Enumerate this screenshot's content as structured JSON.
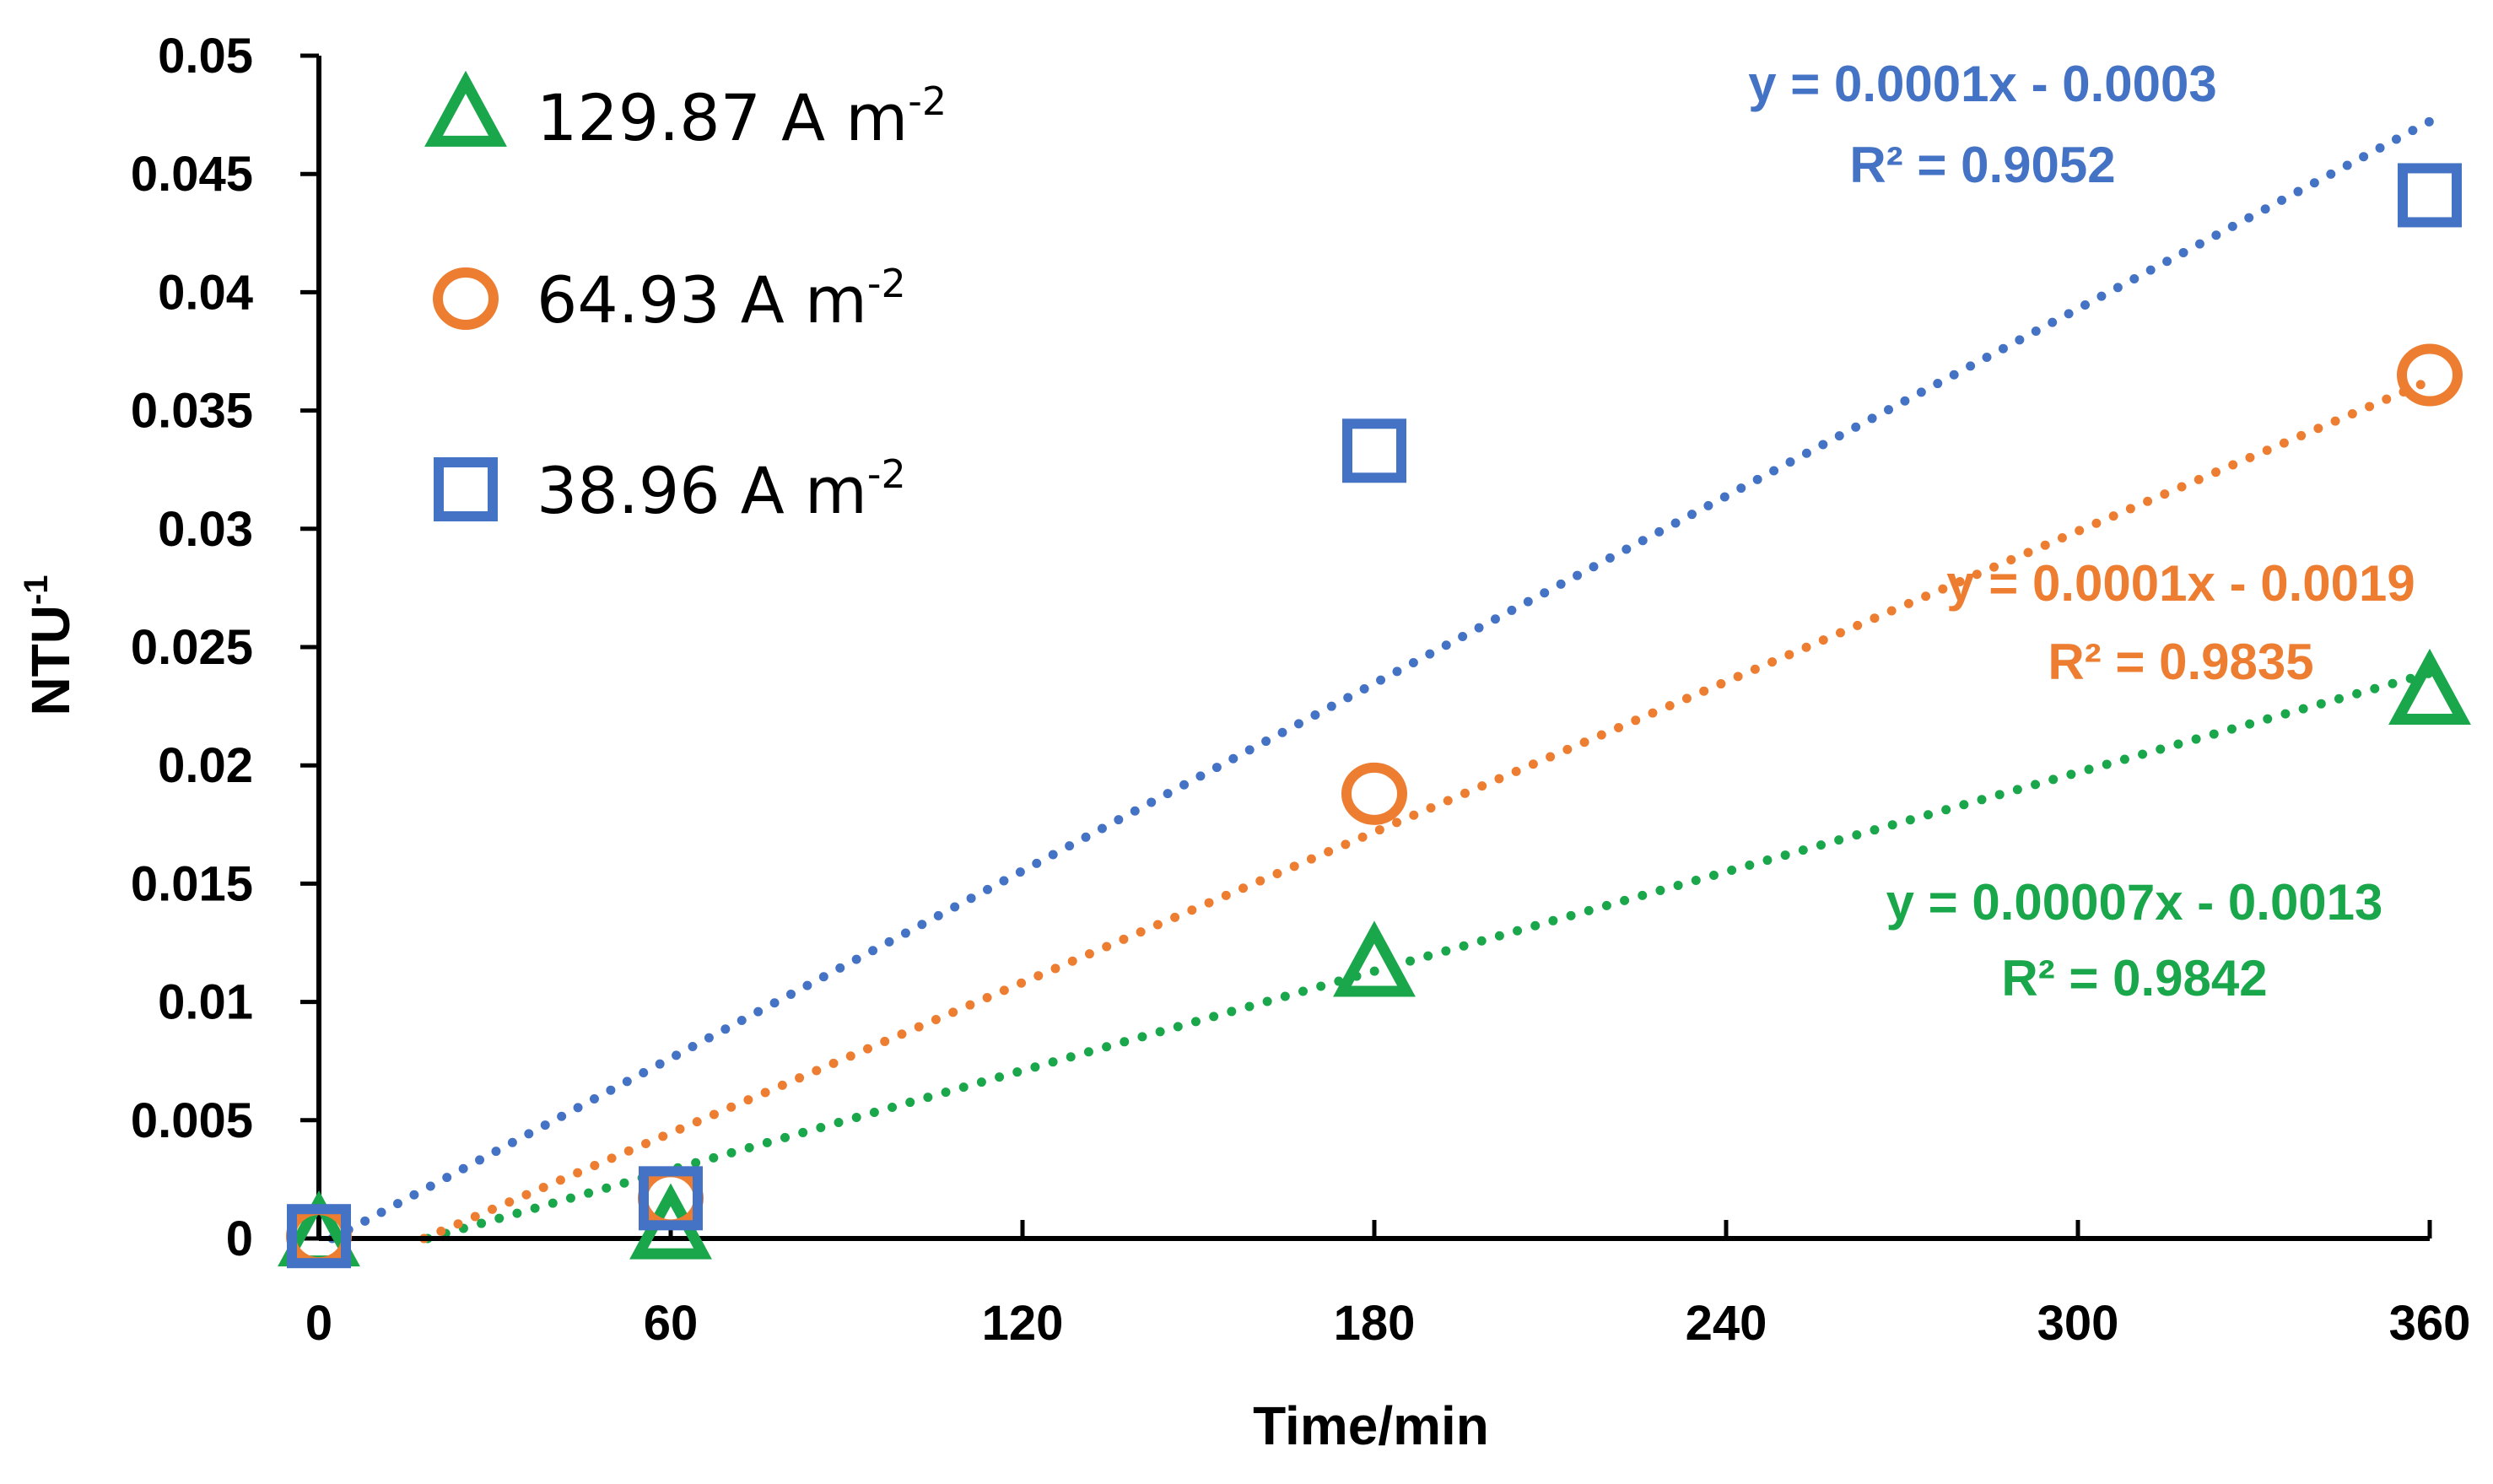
{
  "chart_data": {
    "type": "scatter",
    "title": "",
    "xlabel": "Time/min",
    "ylabel": "NTU",
    "ylabel_sup": "-1",
    "xlim": [
      0,
      360
    ],
    "ylim": [
      0,
      0.05
    ],
    "x_ticks": [
      "0",
      "60",
      "120",
      "180",
      "240",
      "300",
      "360"
    ],
    "y_ticks": [
      "0",
      "0.005",
      "0.01",
      "0.015",
      "0.02",
      "0.025",
      "0.03",
      "0.035",
      "0.04",
      "0.045",
      "0.05"
    ],
    "legend_position": "top-left",
    "series": [
      {
        "name": "129.87 A m",
        "name_sup": "-2",
        "marker": "triangle",
        "color": "#1aa64a",
        "x": [
          0,
          60,
          180,
          360
        ],
        "y": [
          0.0001,
          0.0004,
          0.0115,
          0.023
        ],
        "trendline": {
          "slope": 7e-05,
          "intercept": -0.0013,
          "style": "dotted"
        },
        "equation": "y = 0.00007x - 0.0013",
        "r2_label": "R² = 0.9842"
      },
      {
        "name": "64.93  A m",
        "name_sup": "-2",
        "marker": "circle",
        "color": "#ed7d31",
        "x": [
          0,
          60,
          180,
          360
        ],
        "y": [
          0.0001,
          0.0017,
          0.0188,
          0.0365
        ],
        "trendline": {
          "slope": 0.000106,
          "intercept": -0.0019,
          "style": "dotted"
        },
        "equation": "y = 0.0001x - 0.0019",
        "r2_label": "R² = 0.9835"
      },
      {
        "name": "38.96  A m",
        "name_sup": "-2",
        "marker": "square",
        "color": "#4472c4",
        "x": [
          0,
          60,
          180,
          360
        ],
        "y": [
          0.0001,
          0.0017,
          0.0333,
          0.0441
        ],
        "trendline": {
          "slope": 0.000132,
          "intercept": -0.0003,
          "style": "dotted"
        },
        "equation": "y = 0.0001x - 0.0003",
        "r2_label": "R² = 0.9052"
      }
    ]
  }
}
